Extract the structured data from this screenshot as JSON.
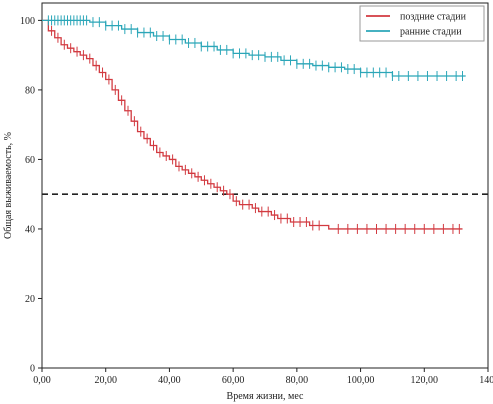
{
  "chart_data": {
    "type": "line",
    "subtype": "kaplan-meier survival curve",
    "xlabel": "Время жизни, мес",
    "ylabel": "Общая выживаемость, %",
    "xlim": [
      0,
      140
    ],
    "ylim": [
      0,
      105
    ],
    "x_ticks": [
      0,
      20,
      40,
      60,
      80,
      100,
      120,
      140
    ],
    "x_tick_labels": [
      "0,00",
      "20,00",
      "40,00",
      "60,00",
      "80,00",
      "100,00",
      "120,00",
      "140,"
    ],
    "y_ticks": [
      0,
      20,
      40,
      60,
      80,
      100
    ],
    "y_tick_labels": [
      "0",
      "20",
      "40",
      "60",
      "80",
      "100"
    ],
    "grid": false,
    "legend_position": "top-right",
    "reference_line": {
      "y": 50,
      "style": "dashed",
      "color": "#222222"
    },
    "series": [
      {
        "name": "поздние стадии",
        "color": "#d23a40",
        "x": [
          0,
          2,
          4,
          6,
          8,
          10,
          12,
          14,
          16,
          18,
          20,
          22,
          24,
          26,
          28,
          30,
          32,
          34,
          36,
          38,
          40,
          42,
          44,
          46,
          48,
          50,
          52,
          54,
          56,
          58,
          60,
          62,
          64,
          66,
          68,
          70,
          72,
          74,
          76,
          78,
          80,
          84,
          90,
          95,
          100,
          110,
          120,
          130,
          132
        ],
        "y": [
          100,
          97,
          95,
          93,
          92,
          91,
          90,
          89,
          87,
          85,
          83,
          80,
          77,
          74,
          71,
          68,
          66,
          64,
          62,
          61,
          60,
          58,
          57,
          56,
          55,
          54,
          53,
          52,
          51,
          50,
          48,
          47,
          47,
          46,
          45,
          45,
          44,
          43,
          43,
          42,
          42,
          41,
          40,
          40,
          40,
          40,
          40,
          40,
          40
        ],
        "censor_x": [
          3,
          5,
          7,
          9,
          11,
          13,
          15,
          17,
          19,
          21,
          23,
          25,
          27,
          29,
          31,
          33,
          35,
          37,
          39,
          41,
          43,
          45,
          47,
          49,
          51,
          53,
          55,
          57,
          59,
          61,
          63,
          65,
          67,
          69,
          71,
          73,
          75,
          77,
          79,
          81,
          83,
          85,
          87,
          93,
          96,
          99,
          102,
          105,
          108,
          111,
          114,
          117,
          120,
          123,
          126,
          129,
          131
        ]
      },
      {
        "name": "ранние стадии",
        "color": "#2ba6b8",
        "x": [
          0,
          5,
          10,
          15,
          20,
          25,
          30,
          35,
          40,
          45,
          50,
          55,
          60,
          65,
          70,
          75,
          80,
          85,
          90,
          95,
          100,
          110,
          120,
          130,
          133
        ],
        "y": [
          100,
          100,
          100,
          99.5,
          98.5,
          97.5,
          96.5,
          95.5,
          94.5,
          93.5,
          92.5,
          91.5,
          90.5,
          90,
          89.5,
          88.5,
          87.5,
          87,
          86.5,
          86,
          85,
          84,
          84,
          84,
          84
        ],
        "censor_x": [
          2,
          3,
          4,
          5,
          6,
          7,
          8,
          9,
          10,
          11,
          12,
          13,
          14,
          16,
          18,
          20,
          22,
          24,
          26,
          28,
          30,
          32,
          34,
          36,
          38,
          40,
          42,
          44,
          46,
          48,
          50,
          52,
          54,
          56,
          58,
          60,
          62,
          64,
          66,
          68,
          70,
          72,
          74,
          76,
          78,
          80,
          82,
          84,
          86,
          88,
          90,
          92,
          94,
          96,
          98,
          100,
          102,
          104,
          106,
          108,
          110,
          112,
          115,
          118,
          121,
          124,
          127,
          130,
          132
        ]
      }
    ]
  }
}
